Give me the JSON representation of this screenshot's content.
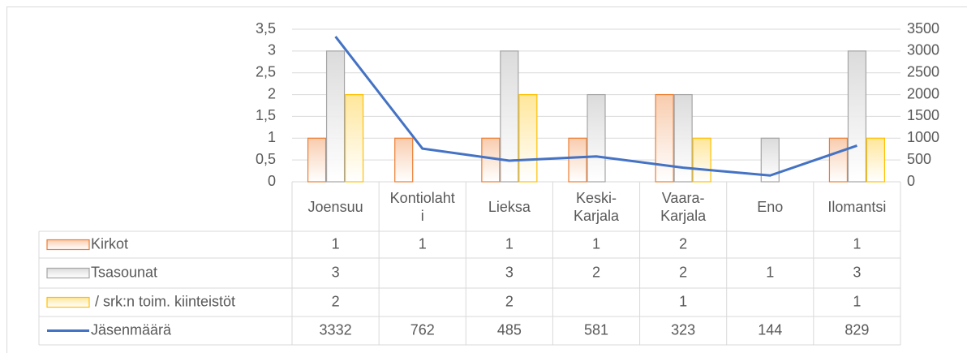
{
  "chart_data": {
    "type": "bar",
    "categories": [
      "Joensuu",
      "Kontiolahti",
      "Lieksa",
      "Keski-Karjala",
      "Vaara-Karjala",
      "Eno",
      "Ilomantsi"
    ],
    "series": [
      {
        "name": "Kirkot",
        "color": "#ed7d31",
        "fill": "#f8cbad",
        "values": [
          1,
          1,
          1,
          1,
          2,
          null,
          1
        ]
      },
      {
        "name": "Tsasounat",
        "color": "#a5a5a5",
        "fill": "#dbdbdb",
        "values": [
          3,
          null,
          3,
          2,
          2,
          1,
          3
        ]
      },
      {
        "name": " / srk:n toim. kiinteistöt",
        "color": "#ffc000",
        "fill": "#ffe699",
        "values": [
          2,
          null,
          2,
          null,
          1,
          null,
          1
        ]
      },
      {
        "name": "Jäsenmäärä",
        "type": "line",
        "axis": "y2",
        "color": "#4472c4",
        "values": [
          3332,
          762,
          485,
          581,
          323,
          144,
          829
        ]
      }
    ],
    "ylim": [
      0,
      3.5
    ],
    "yticks": [
      0,
      {
        "value": 0.5,
        "label": "0,5"
      },
      1,
      {
        "value": 1.5,
        "label": "1,5"
      },
      2,
      {
        "value": 2.5,
        "label": "2,5"
      },
      3,
      {
        "value": 3.5,
        "label": "3,5"
      }
    ],
    "y2lim": [
      0,
      3500
    ],
    "y2ticks": [
      0,
      500,
      1000,
      1500,
      2000,
      2500,
      3000,
      3500
    ],
    "grid": true,
    "data_table": true
  }
}
